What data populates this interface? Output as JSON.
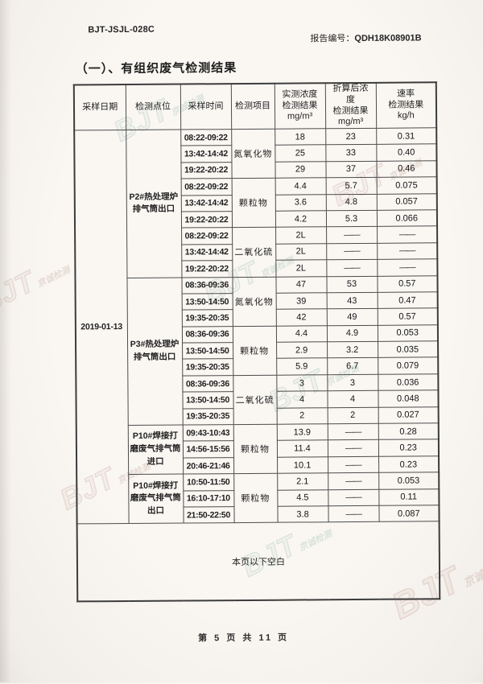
{
  "page": {
    "form_code": "BJT-JSJL-028C",
    "report_no_label": "报告编号：",
    "report_no": "QDH18K08901B",
    "section_title": "（一）、有组织废气检测结果",
    "blank_note": "本页以下空白",
    "footer": "第 5 页 共 11 页",
    "watermark": "BJT",
    "watermark_sub": "京诚检测",
    "watermark_color_rose": "#c1a096",
    "watermark_color_sage": "#9cb8ac"
  },
  "table": {
    "headers": [
      "采样日期",
      "检测点位",
      "采样时间",
      "检测项目",
      "实测浓度\n检测结果\nmg/m³",
      "折算后浓\n度\n检测结果\nmg/m³",
      "速率\n检测结果\nkg/h"
    ],
    "date": "2019-01-13",
    "groups": [
      {
        "point": "P2#热处理炉排气筒出口",
        "items": [
          {
            "name": "氮氧化物",
            "rows": [
              [
                "08:22-09:22",
                "18",
                "23",
                "0.31"
              ],
              [
                "13:42-14:42",
                "25",
                "33",
                "0.40"
              ],
              [
                "19:22-20:22",
                "29",
                "37",
                "0.46"
              ]
            ]
          },
          {
            "name": "颗粒物",
            "rows": [
              [
                "08:22-09:22",
                "4.4",
                "5.7",
                "0.075"
              ],
              [
                "13:42-14:42",
                "3.6",
                "4.8",
                "0.057"
              ],
              [
                "19:22-20:22",
                "4.2",
                "5.3",
                "0.066"
              ]
            ]
          },
          {
            "name": "二氧化硫",
            "rows": [
              [
                "08:22-09:22",
                "2L",
                "——",
                "——"
              ],
              [
                "13:42-14:42",
                "2L",
                "——",
                "——"
              ],
              [
                "19:22-20:22",
                "2L",
                "——",
                "——"
              ]
            ]
          }
        ]
      },
      {
        "point": "P3#热处理炉排气筒出口",
        "items": [
          {
            "name": "氮氧化物",
            "rows": [
              [
                "08:36-09:36",
                "47",
                "53",
                "0.57"
              ],
              [
                "13:50-14:50",
                "39",
                "43",
                "0.47"
              ],
              [
                "19:35-20:35",
                "42",
                "49",
                "0.57"
              ]
            ]
          },
          {
            "name": "颗粒物",
            "rows": [
              [
                "08:36-09:36",
                "4.4",
                "4.9",
                "0.053"
              ],
              [
                "13:50-14:50",
                "2.9",
                "3.2",
                "0.035"
              ],
              [
                "19:35-20:35",
                "5.9",
                "6.7",
                "0.079"
              ]
            ]
          },
          {
            "name": "二氧化硫",
            "rows": [
              [
                "08:36-09:36",
                "3",
                "3",
                "0.036"
              ],
              [
                "13:50-14:50",
                "4",
                "4",
                "0.048"
              ],
              [
                "19:35-20:35",
                "2",
                "2",
                "0.027"
              ]
            ]
          }
        ]
      },
      {
        "point": "P10#焊接打磨废气排气筒进口",
        "items": [
          {
            "name": "颗粒物",
            "rows": [
              [
                "09:43-10:43",
                "13.9",
                "——",
                "0.28"
              ],
              [
                "14:56-15:56",
                "11.4",
                "——",
                "0.23"
              ],
              [
                "20:46-21:46",
                "10.1",
                "——",
                "0.23"
              ]
            ]
          }
        ]
      },
      {
        "point": "P10#焊接打磨废气排气筒出口",
        "items": [
          {
            "name": "颗粒物",
            "rows": [
              [
                "10:50-11:50",
                "2.1",
                "——",
                "0.053"
              ],
              [
                "16:10-17:10",
                "4.5",
                "——",
                "0.11"
              ],
              [
                "21:50-22:50",
                "3.8",
                "——",
                "0.087"
              ]
            ]
          }
        ]
      }
    ]
  }
}
